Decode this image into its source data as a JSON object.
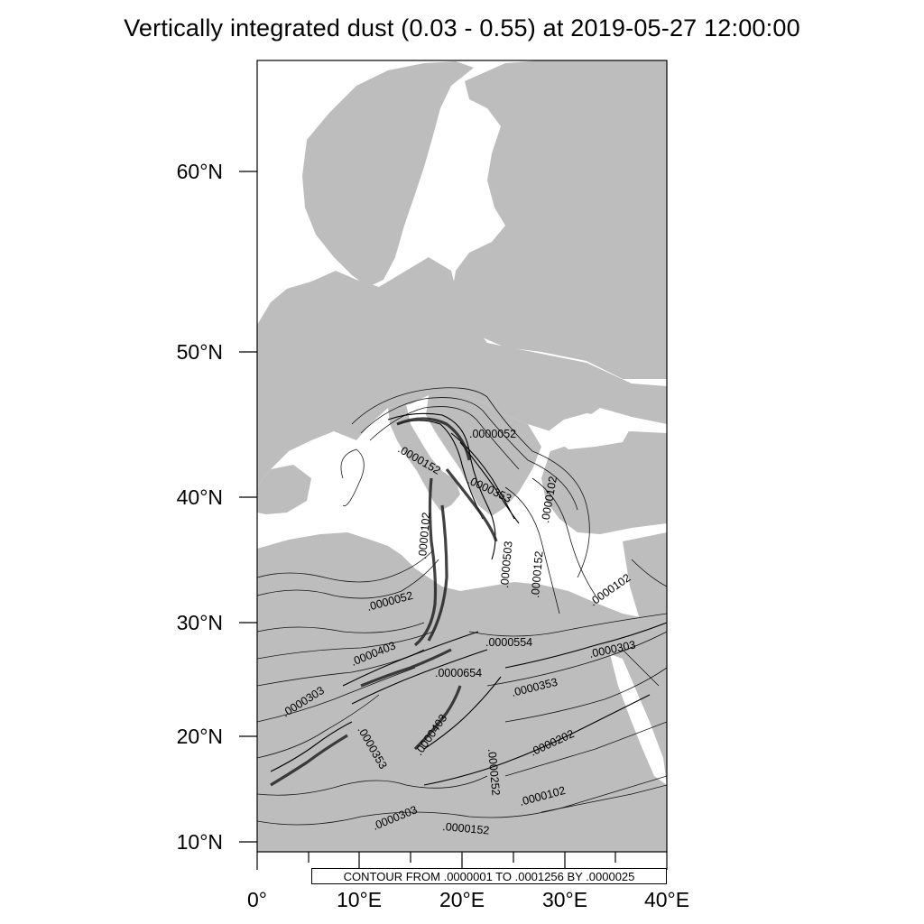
{
  "title": "Vertically integrated dust (0.03 - 0.55) at 2019-05-27 12:00:00",
  "axes": {
    "lat_ticks": [
      "60°N",
      "50°N",
      "40°N",
      "30°N",
      "20°N",
      "10°N"
    ],
    "lon_ticks": [
      "0°",
      "10°E",
      "20°E",
      "30°E",
      "40°E"
    ]
  },
  "contour_info": "CONTOUR FROM .0000001 TO .0001256 BY .0000025",
  "contour_labels": [
    ".0000052",
    ".0000152",
    ".0000353",
    ".0000102",
    ".0000102",
    ".0000503",
    ".0000152",
    ".0000052",
    ".0000102",
    ".0000403",
    ".0000554",
    ".0000303",
    ".0000654",
    ".0000353",
    ".0000303",
    ".0000403",
    ".0000202",
    ".0000353",
    ".0000252",
    ".0000102",
    ".0000303",
    ".0000152"
  ],
  "colors": {
    "land": "#bdbdbd",
    "sea": "#ffffff",
    "contour": "#000000"
  }
}
